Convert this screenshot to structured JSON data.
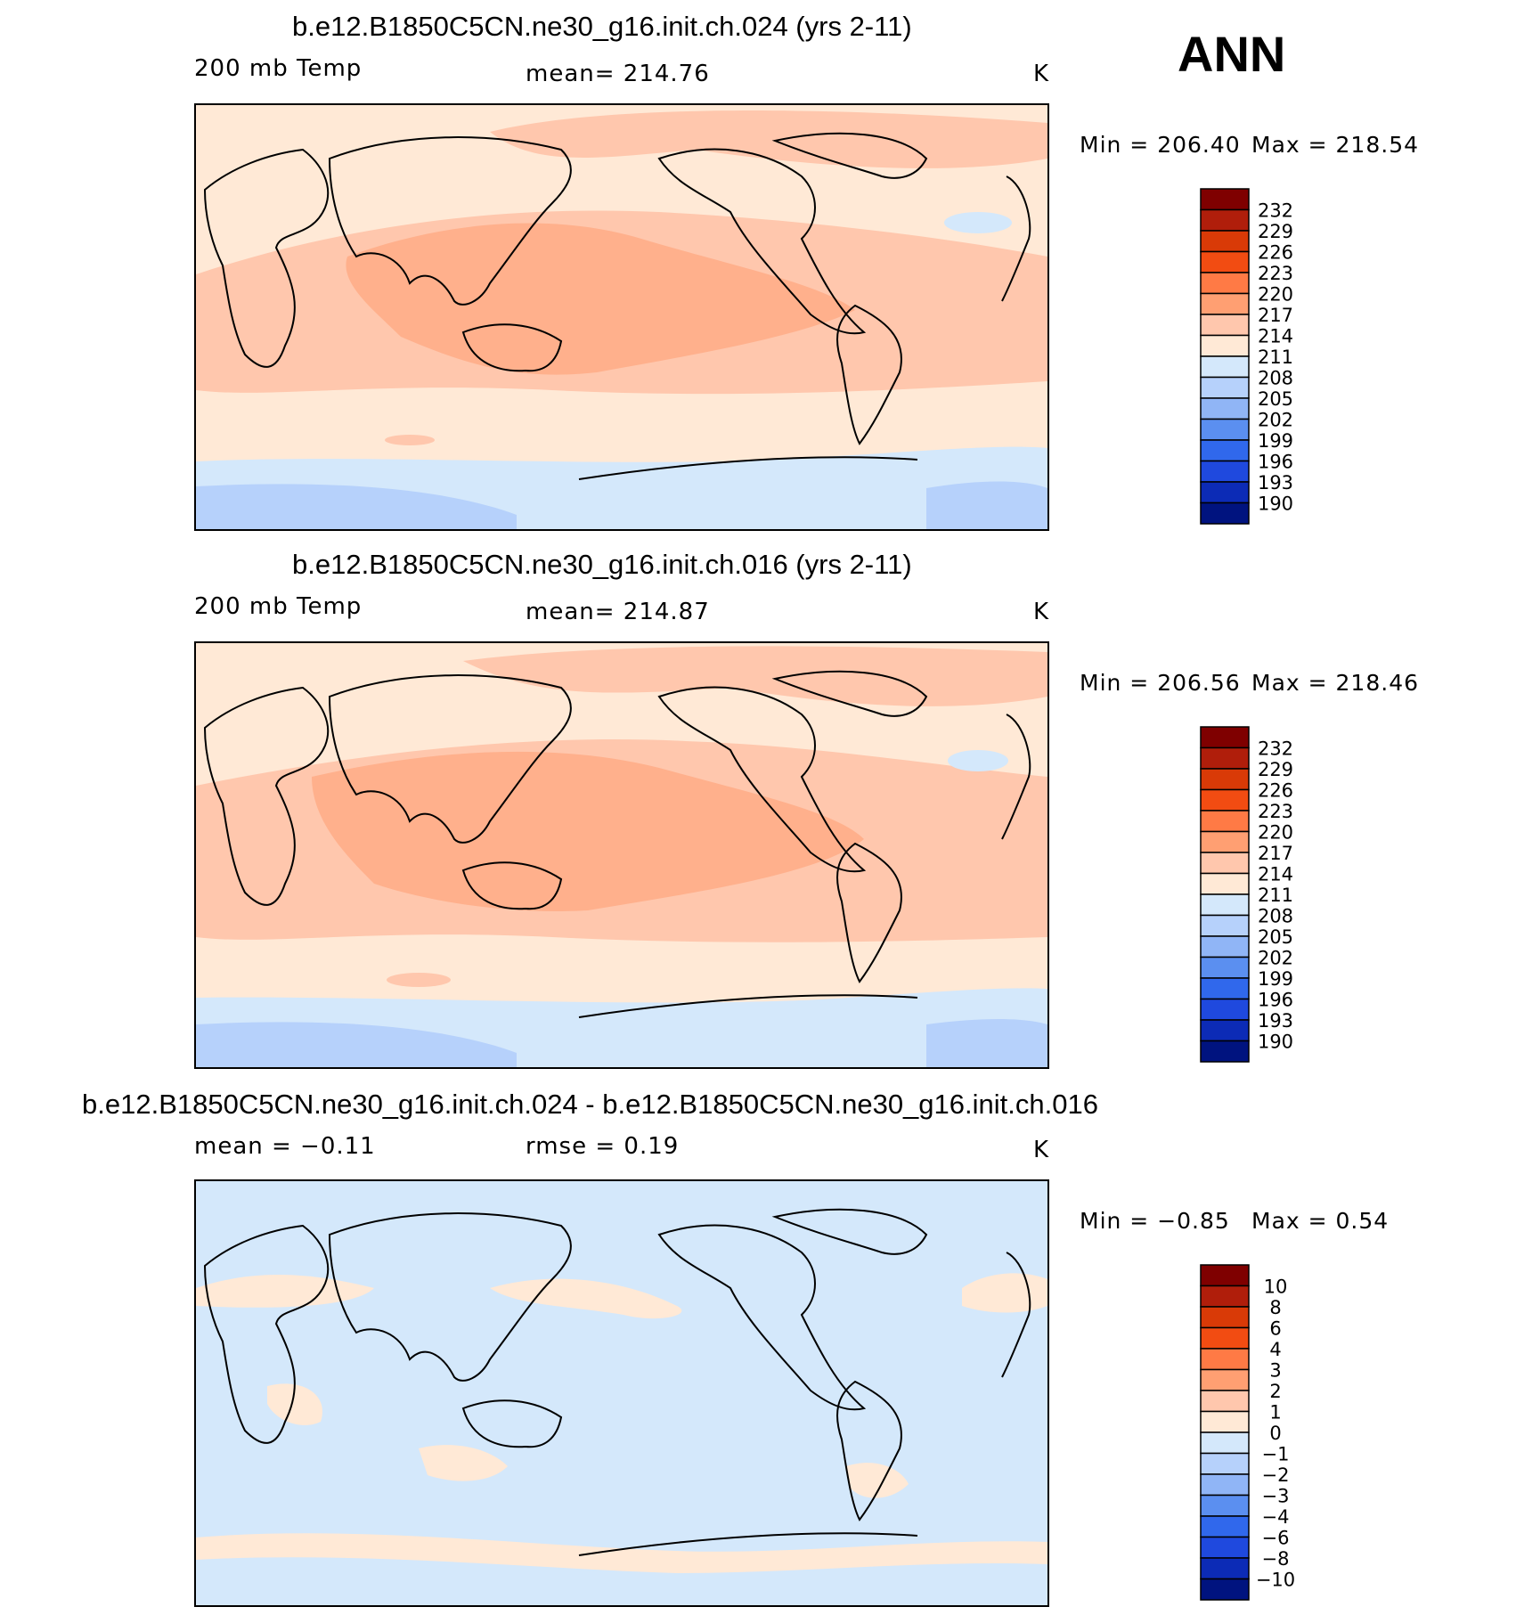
{
  "season": "ANN",
  "units": "K",
  "panels": [
    {
      "title": "b.e12.B1850C5CN.ne30_g16.init.ch.024 (yrs 2-11)",
      "variable": "200 mb Temp",
      "stat_text": "mean=  214.76",
      "units": "K",
      "min_text": "Min  =  206.40",
      "max_text": "Max  =  218.54"
    },
    {
      "title": "b.e12.B1850C5CN.ne30_g16.init.ch.016 (yrs 2-11)",
      "variable": "200 mb Temp",
      "stat_text": "mean=  214.87",
      "units": "K",
      "min_text": "Min  =  206.56",
      "max_text": "Max  =  218.46"
    },
    {
      "title": "b.e12.B1850C5CN.ne30_g16.init.ch.024 - b.e12.B1850C5CN.ne30_g16.init.ch.016",
      "mean_text": "mean  =    −0.11",
      "rmse_text": "rmse  =     0.19",
      "units": "K",
      "min_text": "Min  =    −0.85",
      "max_text": "Max  =     0.54"
    }
  ],
  "colorbars": {
    "absolute": {
      "labels": [
        "232",
        "229",
        "226",
        "223",
        "220",
        "217",
        "214",
        "211",
        "208",
        "205",
        "202",
        "199",
        "196",
        "193",
        "190"
      ],
      "colors": [
        "#7f0000",
        "#b01e0b",
        "#d93a07",
        "#f24c12",
        "#ff7a45",
        "#ff9f72",
        "#ffc7ad",
        "#ffe9d6",
        "#d4e8fb",
        "#b6d1fb",
        "#90b5f6",
        "#5b8ff0",
        "#3068ec",
        "#1f49de",
        "#0c2bb6",
        "#00137f"
      ]
    },
    "difference": {
      "labels": [
        "10",
        "8",
        "6",
        "4",
        "3",
        "2",
        "1",
        "0",
        "−1",
        "−2",
        "−3",
        "−4",
        "−6",
        "−8",
        "−10"
      ],
      "colors": [
        "#7f0000",
        "#b01e0b",
        "#d93a07",
        "#f24c12",
        "#ff7a45",
        "#ff9f72",
        "#ffc7ad",
        "#ffe9d6",
        "#d4e8fb",
        "#b6d1fb",
        "#90b5f6",
        "#5b8ff0",
        "#3068ec",
        "#1f49de",
        "#0c2bb6",
        "#00137f"
      ]
    }
  },
  "field_colors": {
    "warm_core": "#ffb08c",
    "warm": "#ffc7ad",
    "pale": "#ffe9d6",
    "cool": "#d4e8fb",
    "cooler": "#b6d1fb"
  }
}
